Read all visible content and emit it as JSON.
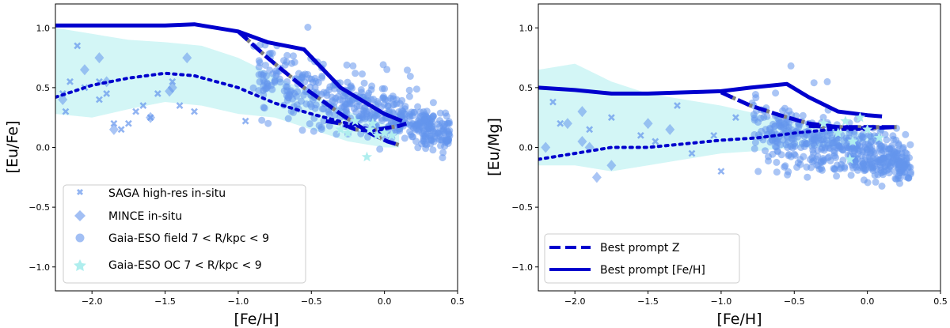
{
  "figure": {
    "colors": {
      "marker": "#6495ED",
      "band": "#AFEEEE",
      "line": "#0000CD",
      "star": "#AFEEEE",
      "dash_inner": "#808080"
    }
  },
  "chart_data": [
    {
      "type": "scatter",
      "title": "",
      "xlabel": "[Fe/H]",
      "ylabel": "[Eu/Fe]",
      "xlim": [
        -2.25,
        0.5
      ],
      "ylim": [
        -1.2,
        1.2
      ],
      "xticks": [
        -2.0,
        -1.5,
        -1.0,
        -0.5,
        0.0,
        0.5
      ],
      "xtick_labels": [
        "−2.0",
        "−1.5",
        "−1.0",
        "−0.5",
        "0.0",
        "0.5"
      ],
      "yticks": [
        -1.0,
        -0.5,
        0.0,
        0.5,
        1.0
      ],
      "ytick_labels": [
        "−1.0",
        "−0.5",
        "0.0",
        "0.5",
        "1.0"
      ],
      "legend": {
        "location": "lower-left",
        "entries": [
          {
            "marker": "x",
            "label": "SAGA high-res in-situ"
          },
          {
            "marker": "diamond",
            "label": "MINCE in-situ"
          },
          {
            "marker": "circle",
            "label": "Gaia-ESO field 7 < R/kpc < 9"
          },
          {
            "marker": "star",
            "label": "Gaia-ESO OC 7 < R/kpc < 9"
          }
        ]
      },
      "band": {
        "x": [
          -2.25,
          -2.0,
          -1.75,
          -1.5,
          -1.25,
          -1.0,
          -0.75,
          -0.5,
          -0.25,
          0.0,
          0.1
        ],
        "upper": [
          1.0,
          0.95,
          0.9,
          0.88,
          0.85,
          0.75,
          0.6,
          0.45,
          0.3,
          0.2,
          0.15
        ],
        "lower": [
          0.28,
          0.25,
          0.32,
          0.38,
          0.35,
          0.28,
          0.25,
          0.15,
          0.05,
          0.0,
          0.0
        ]
      },
      "series": [
        {
          "name": "Gaia-ESO field 7 < R/kpc < 9",
          "marker": "circle",
          "cloud": {
            "n": 520,
            "x_range": [
              -0.9,
              0.45
            ],
            "seed": 11,
            "upper": 0.75,
            "lower": 0.05
          }
        },
        {
          "name": "SAGA high-res in-situ",
          "marker": "x",
          "x": [
            -2.2,
            -2.15,
            -2.1,
            -2.05,
            -1.95,
            -1.9,
            -1.85,
            -1.7,
            -1.65,
            -1.6,
            -1.75,
            -1.55,
            -1.4,
            -1.3,
            -1.45,
            -2.18,
            -1.8,
            -1.95,
            -0.95
          ],
          "y": [
            0.45,
            0.55,
            0.85,
            0.5,
            0.55,
            0.45,
            0.2,
            0.3,
            0.35,
            0.25,
            0.2,
            0.45,
            0.35,
            0.3,
            0.55,
            0.3,
            0.15,
            0.4,
            0.22
          ]
        },
        {
          "name": "MINCE in-situ",
          "marker": "diamond",
          "x": [
            -2.05,
            -1.95,
            -1.9,
            -1.85,
            -1.6,
            -1.45,
            -1.35,
            -1.47,
            -2.2
          ],
          "y": [
            0.65,
            0.75,
            0.55,
            0.15,
            0.25,
            0.5,
            0.75,
            0.47,
            0.4
          ]
        },
        {
          "name": "Gaia-ESO OC 7 < R/kpc < 9",
          "marker": "star",
          "x": [
            -0.25,
            -0.1,
            -0.05,
            0.0,
            -0.12,
            -0.3,
            0.05,
            -0.08,
            -0.2
          ],
          "y": [
            0.12,
            0.15,
            0.1,
            0.12,
            -0.08,
            0.15,
            0.1,
            0.2,
            0.22
          ]
        },
        {
          "name": "Best prompt [Fe/H]",
          "style": "solid",
          "x": [
            -2.25,
            -2.0,
            -1.5,
            -1.3,
            -1.0,
            -0.8,
            -0.55,
            -0.3,
            0.0,
            0.12
          ],
          "y": [
            1.02,
            1.02,
            1.02,
            1.03,
            0.97,
            0.88,
            0.82,
            0.5,
            0.28,
            0.22
          ]
        },
        {
          "name": "Best prompt Z",
          "style": "dashed",
          "x": [
            -1.0,
            -0.8,
            -0.55,
            -0.3,
            -0.1,
            0.02,
            0.1
          ],
          "y": [
            0.97,
            0.75,
            0.5,
            0.28,
            0.12,
            0.05,
            0.02
          ]
        },
        {
          "name": "Best prompt Z (secondary)",
          "style": "dashed",
          "x": [
            -0.4,
            -0.3,
            -0.2,
            -0.1,
            0.0,
            0.1,
            0.15
          ],
          "y": [
            0.22,
            0.2,
            0.15,
            0.14,
            0.16,
            0.18,
            0.2
          ]
        },
        {
          "name": "Model dotted",
          "style": "dotted",
          "x": [
            -2.25,
            -2.0,
            -1.75,
            -1.5,
            -1.3,
            -1.0,
            -0.75,
            -0.5,
            -0.25,
            0.0
          ],
          "y": [
            0.42,
            0.52,
            0.58,
            0.62,
            0.6,
            0.5,
            0.37,
            0.28,
            0.2,
            0.12
          ]
        }
      ]
    },
    {
      "type": "scatter",
      "title": "",
      "xlabel": "[Fe/H]",
      "ylabel": "[Eu/Mg]",
      "xlim": [
        -2.25,
        0.5
      ],
      "ylim": [
        -1.2,
        1.2
      ],
      "xticks": [
        -2.0,
        -1.5,
        -1.0,
        -0.5,
        0.0,
        0.5
      ],
      "xtick_labels": [
        "−2.0",
        "−1.5",
        "−1.0",
        "−0.5",
        "0.0",
        "0.5"
      ],
      "yticks": [
        -1.0,
        -0.5,
        0.0,
        0.5,
        1.0
      ],
      "ytick_labels": [
        "−1.0",
        "−0.5",
        "0.0",
        "0.5",
        "1.0"
      ],
      "legend": {
        "location": "lower-left",
        "entries": [
          {
            "line": "dashed",
            "label": "Best prompt Z"
          },
          {
            "line": "solid",
            "label": "Best prompt [Fe/H]"
          }
        ]
      },
      "band": {
        "x": [
          -2.25,
          -2.0,
          -1.75,
          -1.5,
          -1.25,
          -1.0,
          -0.75,
          -0.5,
          -0.25,
          0.0,
          0.1
        ],
        "upper": [
          0.65,
          0.7,
          0.55,
          0.45,
          0.4,
          0.35,
          0.28,
          0.2,
          0.15,
          0.12,
          0.1
        ],
        "lower": [
          -0.15,
          -0.15,
          -0.2,
          -0.15,
          -0.1,
          -0.05,
          -0.03,
          0.0,
          0.0,
          0.05,
          0.05
        ]
      },
      "series": [
        {
          "name": "Gaia-ESO field 7 < R/kpc < 9",
          "marker": "circle",
          "cloud": {
            "n": 520,
            "x_range": [
              -0.8,
              0.3
            ],
            "seed": 23,
            "upper": 0.45,
            "lower": -0.2
          }
        },
        {
          "name": "SAGA high-res in-situ",
          "marker": "x",
          "x": [
            -2.15,
            -2.1,
            -1.9,
            -1.75,
            -1.55,
            -1.45,
            -1.3,
            -1.2,
            -1.0,
            -1.05,
            -0.9
          ],
          "y": [
            0.38,
            0.2,
            0.15,
            0.25,
            0.1,
            0.05,
            0.35,
            -0.05,
            -0.2,
            0.1,
            0.25
          ]
        },
        {
          "name": "MINCE in-situ",
          "marker": "diamond",
          "x": [
            -2.05,
            -1.95,
            -1.9,
            -1.85,
            -1.75,
            -1.5,
            -1.35,
            -2.2,
            -1.95
          ],
          "y": [
            0.2,
            0.3,
            0.0,
            -0.25,
            -0.15,
            0.2,
            0.15,
            0.0,
            0.05
          ]
        },
        {
          "name": "Gaia-ESO OC 7 < R/kpc < 9",
          "marker": "star",
          "x": [
            -0.2,
            -0.15,
            -0.1,
            -0.05,
            0.08,
            -0.12,
            -0.3,
            0.0
          ],
          "y": [
            0.12,
            0.22,
            0.05,
            0.25,
            0.08,
            -0.1,
            0.2,
            0.15
          ]
        },
        {
          "name": "Best prompt [Fe/H]",
          "style": "solid",
          "x": [
            -2.25,
            -2.0,
            -1.75,
            -1.5,
            -1.25,
            -1.0,
            -0.8,
            -0.55,
            -0.4,
            -0.2,
            0.0,
            0.1
          ],
          "y": [
            0.5,
            0.48,
            0.45,
            0.45,
            0.46,
            0.47,
            0.5,
            0.53,
            0.42,
            0.3,
            0.27,
            0.26
          ]
        },
        {
          "name": "Best prompt Z",
          "style": "dashed",
          "x": [
            -1.0,
            -0.8,
            -0.6,
            -0.4,
            -0.2,
            0.0,
            0.2
          ],
          "y": [
            0.46,
            0.35,
            0.27,
            0.2,
            0.17,
            0.16,
            0.17
          ]
        },
        {
          "name": "Best prompt Z (secondary)",
          "style": "dashed",
          "x": [
            -0.4,
            -0.2,
            0.0,
            0.2
          ],
          "y": [
            0.18,
            0.17,
            0.17,
            0.17
          ]
        },
        {
          "name": "Model dotted",
          "style": "dotted",
          "x": [
            -2.25,
            -2.0,
            -1.75,
            -1.5,
            -1.25,
            -1.0,
            -0.75,
            -0.5,
            -0.25,
            0.0
          ],
          "y": [
            -0.1,
            -0.05,
            0.0,
            0.0,
            0.03,
            0.06,
            0.08,
            0.12,
            0.15,
            0.15
          ]
        }
      ]
    }
  ]
}
